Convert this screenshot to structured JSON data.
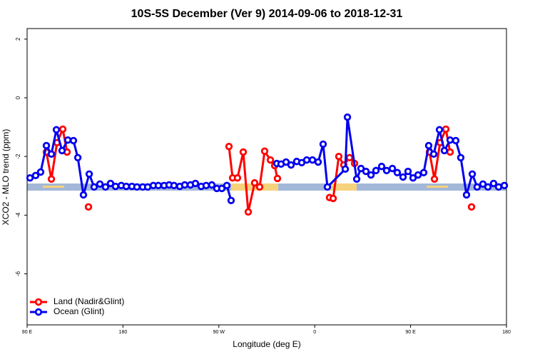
{
  "chart_data": {
    "type": "line",
    "title": "10S-5S December (Ver 9)   2014-09-06 to 2018-12-31",
    "x_label": "Longitude (deg E)",
    "y_label": "XCO2 - MLO trend (ppm)",
    "xlim": [
      90,
      540
    ],
    "xticks": [
      {
        "value": 90,
        "label": "90 E"
      },
      {
        "value": 180,
        "label": "180"
      },
      {
        "value": 270,
        "label": "90 W"
      },
      {
        "value": 360,
        "label": "0"
      },
      {
        "value": 450,
        "label": "90 E"
      },
      {
        "value": 540,
        "label": "180"
      }
    ],
    "ylim": [
      -7.74,
      2.36
    ],
    "yticks": [
      2,
      0,
      -2,
      -4,
      -6
    ],
    "legend": "bottom-left",
    "series": [
      {
        "name": "Land (Nadir&Glint)",
        "color": "#ff0000",
        "x": [
          108.1,
          112.8,
          118.1,
          123.5,
          127.5,
          null,
          147.6,
          null,
          279.5,
          282.9,
          287.5,
          292.9,
          297.6,
          303.6,
          308.3,
          313.0,
          318.4,
          322.4,
          325.0,
          null,
          373.9,
          377.3,
          382.6,
          387.3,
          392.7,
          397.4,
          null,
          467.7,
          472.4,
          477.7,
          483.1,
          487.1,
          null,
          507.2
        ],
        "values": [
          -1.85,
          -2.77,
          -1.53,
          -1.07,
          -1.85,
          null,
          -3.72,
          null,
          -1.66,
          -2.73,
          -2.73,
          -1.85,
          -3.89,
          -2.9,
          -3.04,
          -1.82,
          -2.12,
          -2.31,
          -2.75,
          null,
          -3.4,
          -3.43,
          -2.0,
          -2.29,
          -2.04,
          -2.24,
          null,
          -1.85,
          -2.77,
          -1.53,
          -1.07,
          -1.85,
          null,
          -3.72
        ]
      },
      {
        "name": "Ocean (Glint)",
        "color": "#0000ee",
        "x": [
          92.7,
          98.0,
          102.7,
          108.1,
          112.8,
          117.5,
          122.8,
          128.2,
          133.5,
          137.6,
          142.9,
          148.3,
          152.9,
          158.3,
          163.6,
          168.3,
          173.0,
          178.4,
          183.1,
          188.4,
          193.1,
          198.5,
          203.2,
          208.5,
          213.2,
          218.6,
          223.3,
          227.9,
          233.3,
          238.0,
          243.3,
          248.0,
          253.4,
          258.1,
          263.4,
          268.1,
          272.8,
          277.5,
          281.5,
          null,
          324.4,
          328.4,
          333.1,
          337.8,
          343.1,
          347.8,
          352.5,
          357.9,
          363.2,
          367.9,
          371.9,
          388.7,
          390.7,
          399.4,
          403.4,
          408.1,
          412.8,
          417.5,
          422.8,
          427.5,
          432.9,
          437.5,
          442.9,
          447.6,
          452.3,
          457.0,
          462.3,
          467.0,
          471.7,
          477.1,
          481.7,
          487.1,
          492.4,
          497.1,
          502.5,
          507.9,
          512.5,
          517.9,
          522.6,
          527.9,
          532.6,
          538.0
        ],
        "values": [
          -2.73,
          -2.65,
          -2.53,
          -1.63,
          -1.92,
          -1.09,
          -1.8,
          -1.44,
          -1.46,
          -2.04,
          -3.31,
          -2.6,
          -3.04,
          -2.94,
          -3.04,
          -2.92,
          -3.02,
          -2.99,
          -3.02,
          -3.02,
          -3.04,
          -3.04,
          -3.04,
          -2.99,
          -2.99,
          -2.99,
          -2.97,
          -2.99,
          -3.02,
          -2.97,
          -2.97,
          -2.92,
          -3.02,
          -2.99,
          -2.97,
          -3.09,
          -3.09,
          -2.99,
          -3.5,
          null,
          -2.24,
          -2.26,
          -2.19,
          -2.29,
          -2.17,
          -2.21,
          -2.12,
          -2.12,
          -2.19,
          -1.58,
          -3.04,
          -2.43,
          -0.66,
          -2.77,
          -2.41,
          -2.51,
          -2.63,
          -2.48,
          -2.34,
          -2.48,
          -2.41,
          -2.55,
          -2.7,
          -2.51,
          -2.73,
          -2.63,
          -2.55,
          -1.63,
          -1.92,
          -1.09,
          -1.8,
          -1.44,
          -1.46,
          -2.04,
          -3.31,
          -2.6,
          -3.04,
          -2.94,
          -3.04,
          -2.92,
          -3.04,
          -2.99
        ]
      }
    ]
  }
}
